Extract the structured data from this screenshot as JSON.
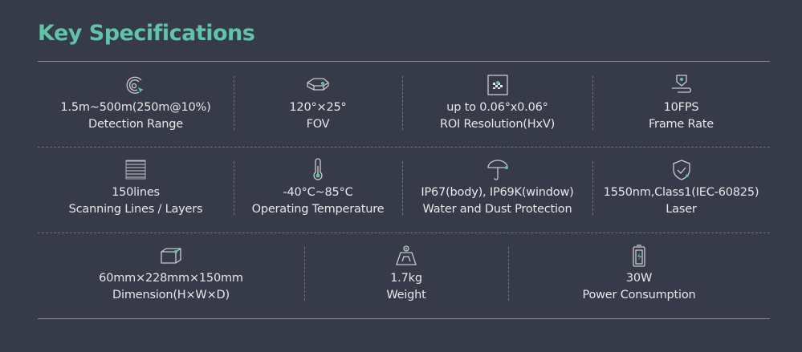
{
  "title": "Key Specifications",
  "colors": {
    "accent": "#5fc4a8",
    "background": "#373a48",
    "text": "#e8e8ea"
  },
  "rows": [
    [
      {
        "icon": "radar-target-icon",
        "value": "1.5m~500m(250m@10%)",
        "label": "Detection Range"
      },
      {
        "icon": "fov-box-icon",
        "value": "120°×25°",
        "label": "FOV"
      },
      {
        "icon": "roi-grid-icon",
        "value": "up to 0.06°x0.06°",
        "label": "ROI Resolution(HxV)"
      },
      {
        "icon": "location-path-icon",
        "value": "10FPS",
        "label": "Frame Rate"
      }
    ],
    [
      {
        "icon": "scan-lines-icon",
        "value": "150lines",
        "label": "Scanning Lines / Layers"
      },
      {
        "icon": "thermometer-icon",
        "value": "-40°C~85°C",
        "label": "Operating Temperature"
      },
      {
        "icon": "umbrella-icon",
        "value": "IP67(body), IP69K(window)",
        "label": "Water and Dust Protection"
      },
      {
        "icon": "shield-check-icon",
        "value": "1550nm,Class1(IEC-60825)",
        "label": "Laser"
      }
    ],
    [
      {
        "icon": "box-dimension-icon",
        "value": "60mm×228mm×150mm",
        "label": "Dimension(H×W×D)"
      },
      {
        "icon": "weight-icon",
        "value": "1.7kg",
        "label": "Weight"
      },
      {
        "icon": "battery-icon",
        "value": "30W",
        "label": "Power Consumption"
      }
    ]
  ]
}
